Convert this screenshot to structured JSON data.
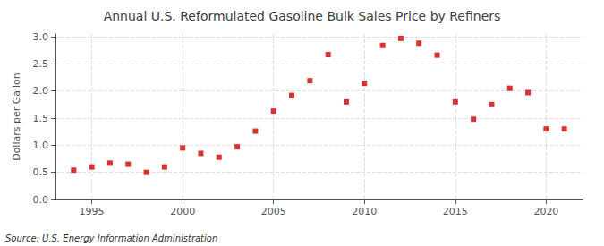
{
  "chart_data": {
    "type": "scatter",
    "title": "Annual U.S. Reformulated Gasoline Bulk Sales Price by Refiners",
    "ylabel": "Dollars per Gallon",
    "annotations": [
      "Source: U.S. Energy Information Administration"
    ],
    "x": [
      1994,
      1995,
      1996,
      1997,
      1998,
      1999,
      2000,
      2001,
      2002,
      2003,
      2004,
      2005,
      2006,
      2007,
      2008,
      2009,
      2010,
      2011,
      2012,
      2013,
      2014,
      2015,
      2016,
      2017,
      2018,
      2019,
      2020,
      2021
    ],
    "values": [
      0.54,
      0.6,
      0.67,
      0.65,
      0.5,
      0.6,
      0.95,
      0.85,
      0.78,
      0.97,
      1.26,
      1.63,
      1.92,
      2.19,
      2.67,
      1.8,
      2.14,
      2.84,
      2.97,
      2.88,
      2.66,
      1.8,
      1.48,
      1.75,
      2.05,
      1.97,
      1.3,
      1.3
    ],
    "color": "#cc0000",
    "marker": "square",
    "xlim": [
      1993,
      2022
    ],
    "xticks": [
      1995,
      2000,
      2005,
      2010,
      2015,
      2020
    ],
    "ylim": [
      0.0,
      3.05
    ],
    "yticks": [
      {
        "value": 0,
        "label": "0.0"
      },
      0.5,
      {
        "value": 1,
        "label": "1.0"
      },
      1.5,
      {
        "value": 2,
        "label": "2.0"
      },
      2.5,
      {
        "value": 3,
        "label": "3.0"
      }
    ],
    "grid": true
  }
}
